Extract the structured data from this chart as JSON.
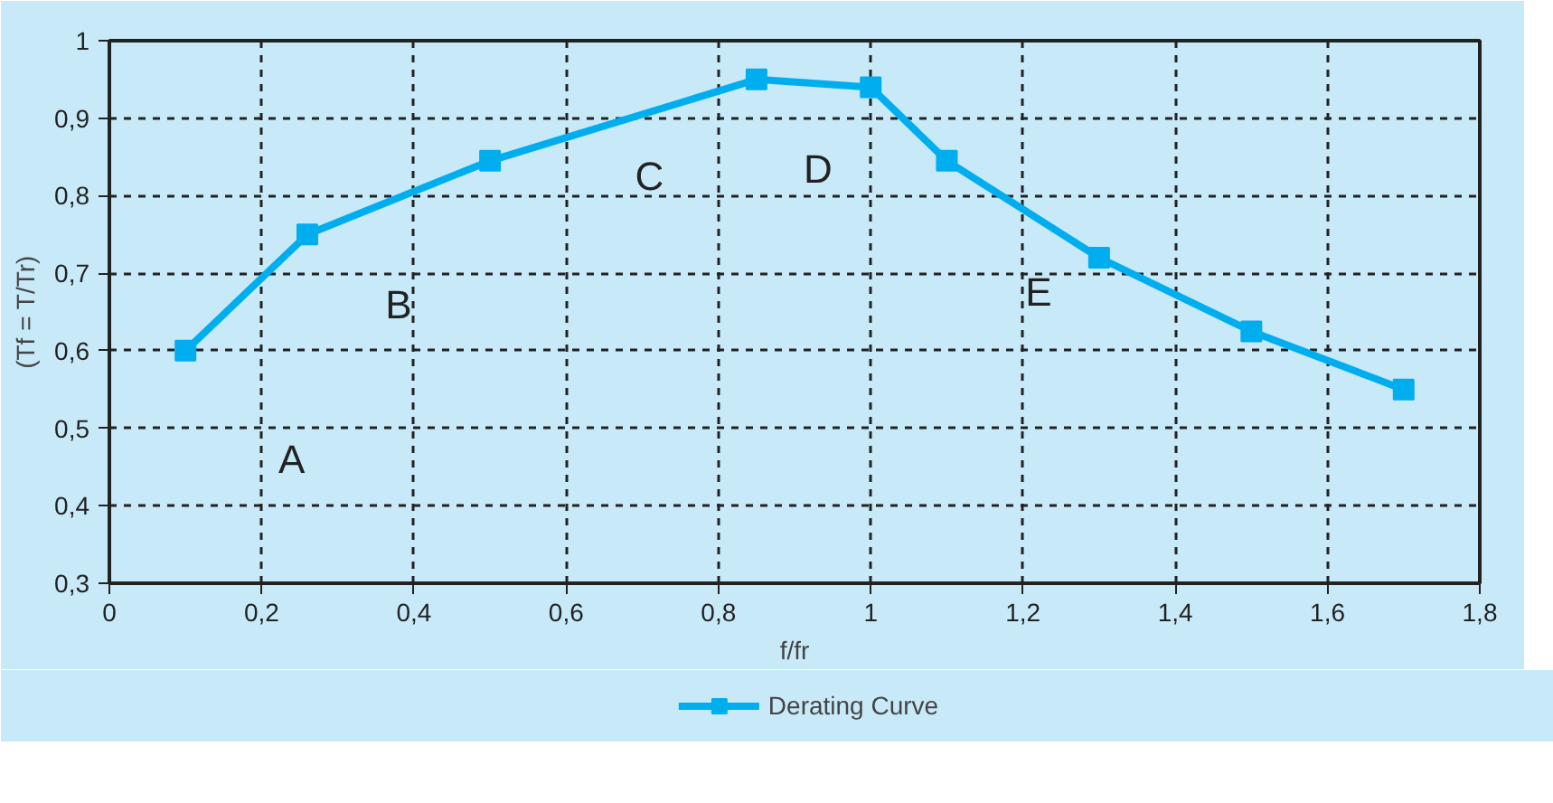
{
  "chart_data": {
    "type": "line",
    "xlabel": "f/fr",
    "ylabel": "(Tf = T/Tr)",
    "x": [
      0.1,
      0.26,
      0.5,
      0.85,
      1.0,
      1.1,
      1.3,
      1.5,
      1.7
    ],
    "series": [
      {
        "name": "Derating Curve",
        "color": "#00aeef",
        "values": [
          0.6,
          0.75,
          0.845,
          0.95,
          0.94,
          0.845,
          0.72,
          0.625,
          0.55
        ]
      }
    ],
    "xlim": [
      0,
      1.8
    ],
    "ylim": [
      0.3,
      1
    ],
    "xticks": [
      0,
      {
        "value": 0.2,
        "label": "0,2"
      },
      {
        "value": 0.4,
        "label": "0,4"
      },
      {
        "value": 0.6,
        "label": "0,6"
      },
      {
        "value": 0.8,
        "label": "0,8"
      },
      1,
      {
        "value": 1.2,
        "label": "1,2"
      },
      {
        "value": 1.4,
        "label": "1,4"
      },
      {
        "value": 1.6,
        "label": "1,6"
      },
      {
        "value": 1.8,
        "label": "1,8"
      }
    ],
    "yticks": [
      {
        "value": 0.3,
        "label": "0,3"
      },
      {
        "value": 0.4,
        "label": "0,4"
      },
      {
        "value": 0.5,
        "label": "0,5"
      },
      {
        "value": 0.6,
        "label": "0,6"
      },
      {
        "value": 0.7,
        "label": "0,7"
      },
      {
        "value": 0.8,
        "label": "0,8"
      },
      {
        "value": 0.9,
        "label": "0,9"
      },
      1
    ],
    "annotations": [
      "A",
      "B",
      "C",
      "D",
      "E"
    ],
    "grid": true,
    "legend": "bottom",
    "marker": "square",
    "line_style": "solid"
  }
}
